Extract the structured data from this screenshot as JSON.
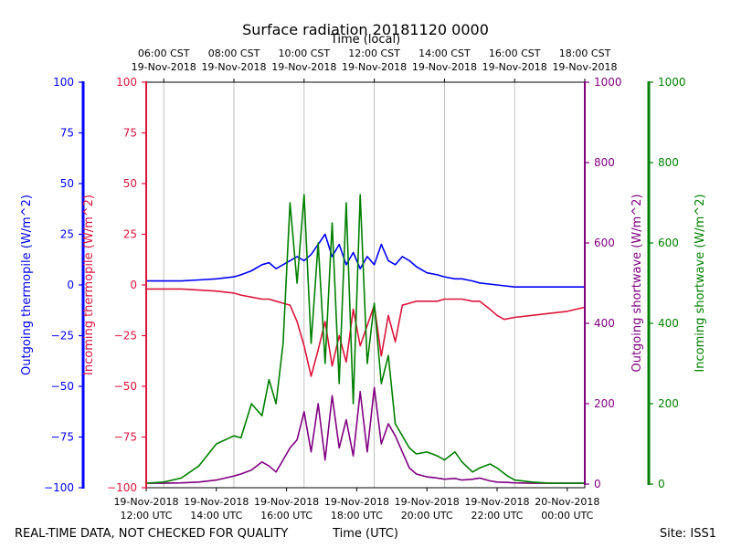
{
  "chart_data": {
    "type": "line",
    "title": "Surface radiation 20181120 0000",
    "top_axis_title": "Time (local)",
    "bottom_axis_title": "Time (UTC)",
    "footer_left": "REAL-TIME DATA, NOT CHECKED FOR QUALITY",
    "footer_right": "Site: ISS1",
    "x_range_hours_utc": [
      11.5,
      24.0
    ],
    "grid": "vertical at top ticks",
    "top_ticks": [
      {
        "h": 12,
        "line1": "06:00 CST",
        "line2": "19-Nov-2018"
      },
      {
        "h": 14,
        "line1": "08:00 CST",
        "line2": "19-Nov-2018"
      },
      {
        "h": 16,
        "line1": "10:00 CST",
        "line2": "19-Nov-2018"
      },
      {
        "h": 18,
        "line1": "12:00 CST",
        "line2": "19-Nov-2018"
      },
      {
        "h": 20,
        "line1": "14:00 CST",
        "line2": "19-Nov-2018"
      },
      {
        "h": 22,
        "line1": "16:00 CST",
        "line2": "19-Nov-2018"
      },
      {
        "h": 24,
        "line1": "18:00 CST",
        "line2": "19-Nov-2018"
      }
    ],
    "bottom_ticks": [
      {
        "h": 11.5,
        "line1": "19-Nov-2018",
        "line2": "12:00 UTC"
      },
      {
        "h": 13.5,
        "line1": "19-Nov-2018",
        "line2": "14:00 UTC"
      },
      {
        "h": 15.5,
        "line1": "19-Nov-2018",
        "line2": "16:00 UTC"
      },
      {
        "h": 17.5,
        "line1": "19-Nov-2018",
        "line2": "18:00 UTC"
      },
      {
        "h": 19.5,
        "line1": "19-Nov-2018",
        "line2": "20:00 UTC"
      },
      {
        "h": 21.5,
        "line1": "19-Nov-2018",
        "line2": "22:00 UTC"
      },
      {
        "h": 23.5,
        "line1": "20-Nov-2018",
        "line2": "00:00 UTC"
      }
    ],
    "axes": [
      {
        "id": "out_thermo",
        "side": "left-outer",
        "title": "Outgoing thermopile (W/m^2)",
        "color": "#0000ff",
        "ylim": [
          -100,
          100
        ],
        "ticks": [
          -100,
          -75,
          -50,
          -25,
          0,
          25,
          50,
          75,
          100
        ],
        "tick_labels": [
          "−100",
          "−75",
          "−50",
          "−25",
          "0",
          "25",
          "50",
          "75",
          "100"
        ]
      },
      {
        "id": "in_thermo",
        "side": "left-inner",
        "title": "Incoming thermopile (W/m^2)",
        "color": "#dc143c",
        "ylim": [
          -100,
          100
        ],
        "ticks": [
          -100,
          -75,
          -50,
          -25,
          0,
          25,
          50,
          75,
          100
        ],
        "tick_labels": [
          "−100",
          "−75",
          "−50",
          "−25",
          "0",
          "25",
          "50",
          "75",
          "100"
        ]
      },
      {
        "id": "out_sw",
        "side": "right-inner",
        "title": "Outgoing shortwave (W/m^2)",
        "color": "#800080",
        "ylim": [
          0,
          1000
        ],
        "ticks": [
          0,
          200,
          400,
          600,
          800,
          1000
        ],
        "tick_labels": [
          "0",
          "200",
          "400",
          "600",
          "800",
          "1000"
        ]
      },
      {
        "id": "in_sw",
        "side": "right-outer",
        "title": "Incoming shortwave (W/m^2)",
        "color": "#008000",
        "ylim": [
          0,
          1000
        ],
        "ticks": [
          0,
          200,
          400,
          600,
          800,
          1000
        ],
        "tick_labels": [
          "0",
          "200",
          "400",
          "600",
          "800",
          "1000"
        ]
      }
    ],
    "series": [
      {
        "name": "Outgoing thermopile",
        "axis": "out_thermo",
        "color": "#0000ff",
        "x": [
          11.5,
          12.0,
          12.5,
          13.0,
          13.5,
          14.0,
          14.2,
          14.5,
          14.8,
          15.0,
          15.2,
          15.4,
          15.6,
          15.8,
          16.0,
          16.2,
          16.4,
          16.6,
          16.8,
          17.0,
          17.2,
          17.4,
          17.6,
          17.8,
          18.0,
          18.2,
          18.4,
          18.6,
          18.8,
          19.0,
          19.2,
          19.5,
          19.8,
          20.0,
          20.3,
          20.5,
          20.8,
          21.0,
          21.5,
          22.0,
          22.5,
          23.0,
          23.5,
          24.0
        ],
        "values": [
          2,
          2,
          2,
          2.5,
          3,
          4,
          5,
          7,
          10,
          11,
          8,
          10,
          12,
          14,
          12,
          15,
          20,
          25,
          14,
          20,
          10,
          16,
          8,
          14,
          10,
          20,
          12,
          10,
          14,
          12,
          9,
          6,
          5,
          4,
          3,
          3,
          2,
          1,
          0,
          -1,
          -1,
          -1,
          -1,
          -1
        ]
      },
      {
        "name": "Incoming thermopile",
        "axis": "in_thermo",
        "color": "#dc143c",
        "x": [
          11.5,
          12.0,
          12.5,
          13.0,
          13.5,
          14.0,
          14.2,
          14.5,
          14.8,
          15.0,
          15.2,
          15.4,
          15.6,
          15.8,
          16.0,
          16.2,
          16.4,
          16.6,
          16.8,
          17.0,
          17.2,
          17.4,
          17.6,
          17.8,
          18.0,
          18.2,
          18.4,
          18.6,
          18.8,
          19.0,
          19.2,
          19.5,
          19.8,
          20.0,
          20.3,
          20.5,
          20.8,
          21.0,
          21.3,
          21.5,
          21.7,
          22.0,
          22.5,
          23.0,
          23.5,
          24.0
        ],
        "values": [
          -2,
          -2,
          -2,
          -2.5,
          -3,
          -4,
          -5,
          -6,
          -7,
          -7,
          -8,
          -9,
          -10,
          -18,
          -30,
          -45,
          -32,
          -18,
          -40,
          -25,
          -38,
          -12,
          -30,
          -20,
          -10,
          -35,
          -15,
          -28,
          -10,
          -9,
          -8,
          -8,
          -8,
          -7,
          -7,
          -7,
          -8,
          -8,
          -12,
          -15,
          -17,
          -16,
          -15,
          -14,
          -13,
          -11
        ]
      },
      {
        "name": "Outgoing shortwave",
        "axis": "out_sw",
        "color": "#800080",
        "x": [
          11.5,
          12.0,
          12.5,
          13.0,
          13.5,
          14.0,
          14.2,
          14.5,
          14.8,
          15.0,
          15.2,
          15.4,
          15.6,
          15.8,
          16.0,
          16.2,
          16.4,
          16.6,
          16.8,
          17.0,
          17.2,
          17.4,
          17.6,
          17.8,
          18.0,
          18.2,
          18.4,
          18.6,
          18.8,
          19.0,
          19.2,
          19.5,
          19.8,
          20.0,
          20.3,
          20.5,
          20.8,
          21.0,
          21.3,
          21.5,
          21.8,
          22.0,
          22.5,
          23.0,
          23.5,
          24.0
        ],
        "values": [
          2,
          2,
          3,
          5,
          10,
          20,
          25,
          35,
          55,
          45,
          30,
          60,
          90,
          110,
          180,
          80,
          200,
          60,
          220,
          90,
          160,
          70,
          230,
          80,
          240,
          100,
          150,
          120,
          80,
          40,
          25,
          18,
          15,
          12,
          14,
          10,
          12,
          15,
          8,
          5,
          4,
          3,
          2,
          2,
          2,
          2
        ]
      },
      {
        "name": "Incoming shortwave",
        "axis": "in_sw",
        "color": "#008000",
        "x": [
          11.5,
          12.0,
          12.5,
          13.0,
          13.5,
          14.0,
          14.2,
          14.5,
          14.8,
          15.0,
          15.2,
          15.4,
          15.6,
          15.8,
          16.0,
          16.2,
          16.4,
          16.6,
          16.8,
          17.0,
          17.2,
          17.4,
          17.6,
          17.8,
          18.0,
          18.2,
          18.4,
          18.6,
          18.8,
          19.0,
          19.2,
          19.5,
          19.8,
          20.0,
          20.3,
          20.5,
          20.8,
          21.0,
          21.3,
          21.5,
          21.8,
          22.0,
          22.5,
          23.0,
          23.5,
          24.0
        ],
        "values": [
          2,
          5,
          15,
          45,
          100,
          120,
          115,
          200,
          170,
          260,
          200,
          350,
          700,
          500,
          720,
          350,
          600,
          300,
          650,
          250,
          700,
          200,
          720,
          300,
          450,
          250,
          320,
          150,
          120,
          90,
          75,
          80,
          70,
          60,
          80,
          55,
          30,
          40,
          50,
          40,
          20,
          10,
          5,
          2,
          2,
          2
        ]
      }
    ]
  }
}
